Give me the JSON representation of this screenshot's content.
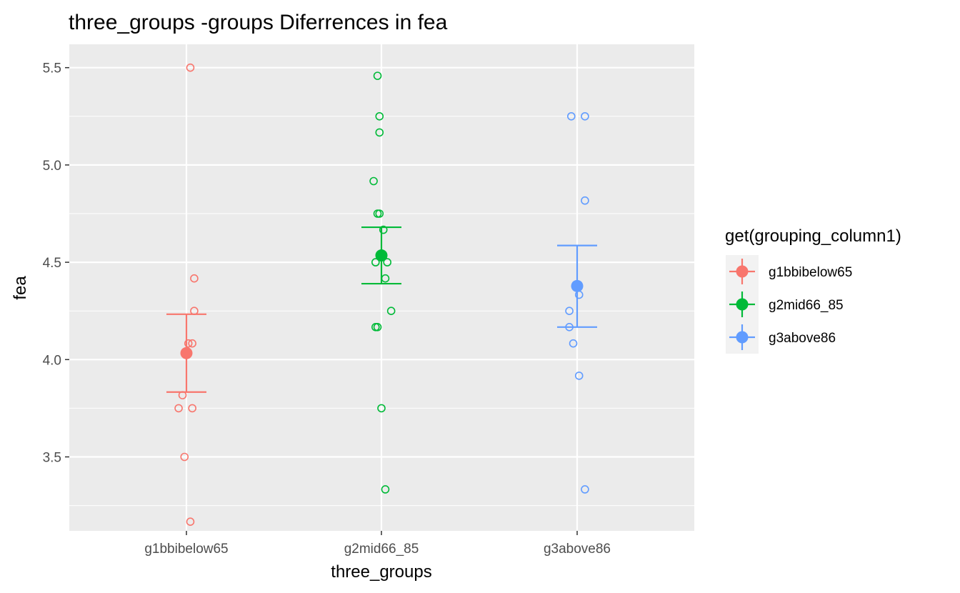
{
  "chart_data": {
    "type": "scatter",
    "title": "three_groups -groups Diferrences in  fea",
    "xlabel": "three_groups",
    "ylabel": "fea",
    "categories": [
      "g1bbibelow65",
      "g2mid66_85",
      "g3above86"
    ],
    "ylim": [
      3.12,
      5.62
    ],
    "yticks": [
      3.5,
      4.0,
      4.5,
      5.0,
      5.5
    ],
    "ytick_labels": [
      "3.5",
      "4.0",
      "4.5",
      "5.0",
      "5.5"
    ],
    "grid": true,
    "legend": {
      "title": "get(grouping_column1)",
      "position": "right",
      "entries": [
        "g1bbibelow65",
        "g2mid66_85",
        "g3above86"
      ]
    },
    "colors": [
      "#F8766D",
      "#00BA38",
      "#619CFF"
    ],
    "series": [
      {
        "name": "g1bbibelow65",
        "points": [
          {
            "x": 0.02,
            "y": 5.5
          },
          {
            "x": 0.04,
            "y": 4.417
          },
          {
            "x": 0.04,
            "y": 4.25
          },
          {
            "x": 0.01,
            "y": 4.083
          },
          {
            "x": 0.03,
            "y": 4.083
          },
          {
            "x": -0.02,
            "y": 3.817
          },
          {
            "x": -0.04,
            "y": 3.75
          },
          {
            "x": 0.03,
            "y": 3.75
          },
          {
            "x": -0.01,
            "y": 3.5
          },
          {
            "x": 0.02,
            "y": 3.167
          }
        ],
        "mean": 4.033,
        "error_low": 3.833,
        "error_high": 4.233
      },
      {
        "name": "g2mid66_85",
        "points": [
          {
            "x": -0.02,
            "y": 5.458
          },
          {
            "x": -0.01,
            "y": 5.25
          },
          {
            "x": -0.01,
            "y": 5.167
          },
          {
            "x": -0.04,
            "y": 4.917
          },
          {
            "x": -0.01,
            "y": 4.75
          },
          {
            "x": -0.02,
            "y": 4.75
          },
          {
            "x": 0.01,
            "y": 4.667
          },
          {
            "x": -0.03,
            "y": 4.5
          },
          {
            "x": 0.03,
            "y": 4.5
          },
          {
            "x": 0.02,
            "y": 4.417
          },
          {
            "x": 0.05,
            "y": 4.25
          },
          {
            "x": -0.02,
            "y": 4.167
          },
          {
            "x": -0.03,
            "y": 4.167
          },
          {
            "x": 0.0,
            "y": 3.75
          },
          {
            "x": 0.02,
            "y": 3.333
          }
        ],
        "mean": 4.535,
        "error_low": 4.39,
        "error_high": 4.68
      },
      {
        "name": "g3above86",
        "points": [
          {
            "x": -0.03,
            "y": 5.25
          },
          {
            "x": 0.04,
            "y": 5.25
          },
          {
            "x": 0.04,
            "y": 4.817
          },
          {
            "x": 0.01,
            "y": 4.333
          },
          {
            "x": -0.04,
            "y": 4.25
          },
          {
            "x": -0.04,
            "y": 4.167
          },
          {
            "x": -0.02,
            "y": 4.083
          },
          {
            "x": 0.01,
            "y": 3.917
          },
          {
            "x": 0.04,
            "y": 3.333
          }
        ],
        "mean": 4.378,
        "error_low": 4.167,
        "error_high": 4.586
      }
    ]
  }
}
